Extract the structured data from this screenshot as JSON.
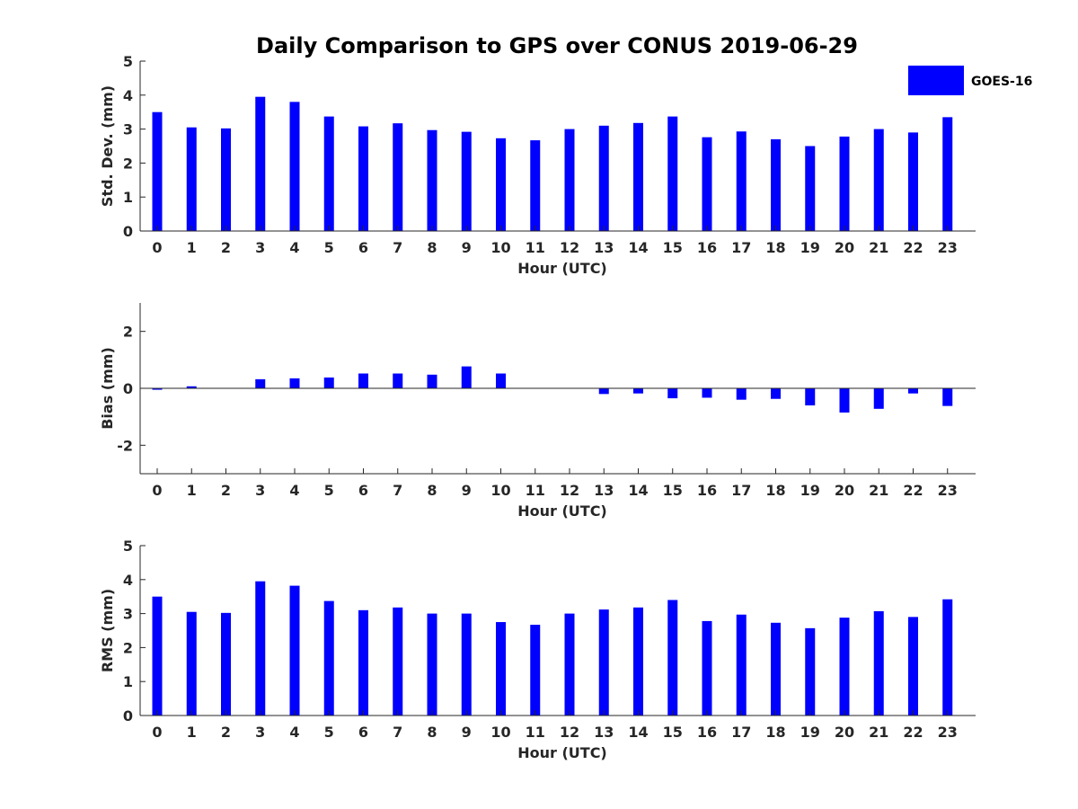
{
  "chart_data": {
    "type": "bar",
    "title": "Daily Comparison to GPS over CONUS 2019-06-29",
    "legend": {
      "entries": [
        "GOES-16"
      ],
      "placement": "top-right"
    },
    "colors": {
      "bar": "#0000ff",
      "axis": "#262626",
      "title": "#000000"
    },
    "panels": [
      {
        "id": "std",
        "ylabel": "Std. Dev. (mm)",
        "xlabel": "Hour (UTC)",
        "ylim": [
          0,
          5
        ],
        "yticks": [
          0,
          1,
          2,
          3,
          4,
          5
        ],
        "ytick_labels": [
          "0",
          "1",
          "2",
          "3",
          "4",
          "5"
        ],
        "categories": [
          "0",
          "1",
          "2",
          "3",
          "4",
          "5",
          "6",
          "7",
          "8",
          "9",
          "10",
          "11",
          "12",
          "13",
          "14",
          "15",
          "16",
          "17",
          "18",
          "19",
          "20",
          "21",
          "22",
          "23"
        ],
        "series": [
          {
            "name": "GOES-16",
            "values": [
              3.5,
              3.05,
              3.02,
              3.95,
              3.8,
              3.37,
              3.08,
              3.17,
              2.97,
              2.92,
              2.73,
              2.67,
              3.0,
              3.1,
              3.18,
              3.37,
              2.76,
              2.93,
              2.7,
              2.5,
              2.78,
              3.0,
              2.9,
              3.35
            ]
          }
        ]
      },
      {
        "id": "bias",
        "ylabel": "Bias (mm)",
        "xlabel": "Hour (UTC)",
        "ylim": [
          -3,
          3
        ],
        "yticks": [
          -2,
          0,
          2
        ],
        "ytick_labels": [
          "-2",
          "0",
          "2"
        ],
        "categories": [
          "0",
          "1",
          "2",
          "3",
          "4",
          "5",
          "6",
          "7",
          "8",
          "9",
          "10",
          "11",
          "12",
          "13",
          "14",
          "15",
          "16",
          "17",
          "18",
          "19",
          "20",
          "21",
          "22",
          "23"
        ],
        "series": [
          {
            "name": "GOES-16",
            "values": [
              -0.05,
              0.07,
              0.0,
              0.32,
              0.35,
              0.38,
              0.52,
              0.52,
              0.48,
              0.77,
              0.52,
              0.0,
              0.0,
              -0.2,
              -0.18,
              -0.35,
              -0.33,
              -0.4,
              -0.37,
              -0.6,
              -0.85,
              -0.72,
              -0.18,
              -0.62
            ]
          }
        ]
      },
      {
        "id": "rms",
        "ylabel": "RMS (mm)",
        "xlabel": "Hour (UTC)",
        "ylim": [
          0,
          5
        ],
        "yticks": [
          0,
          1,
          2,
          3,
          4,
          5
        ],
        "ytick_labels": [
          "0",
          "1",
          "2",
          "3",
          "4",
          "5"
        ],
        "categories": [
          "0",
          "1",
          "2",
          "3",
          "4",
          "5",
          "6",
          "7",
          "8",
          "9",
          "10",
          "11",
          "12",
          "13",
          "14",
          "15",
          "16",
          "17",
          "18",
          "19",
          "20",
          "21",
          "22",
          "23"
        ],
        "series": [
          {
            "name": "GOES-16",
            "values": [
              3.5,
              3.05,
              3.02,
              3.95,
              3.82,
              3.37,
              3.1,
              3.18,
              3.0,
              3.0,
              2.75,
              2.67,
              3.0,
              3.12,
              3.18,
              3.4,
              2.78,
              2.97,
              2.73,
              2.57,
              2.88,
              3.07,
              2.9,
              3.42
            ]
          }
        ]
      }
    ]
  }
}
